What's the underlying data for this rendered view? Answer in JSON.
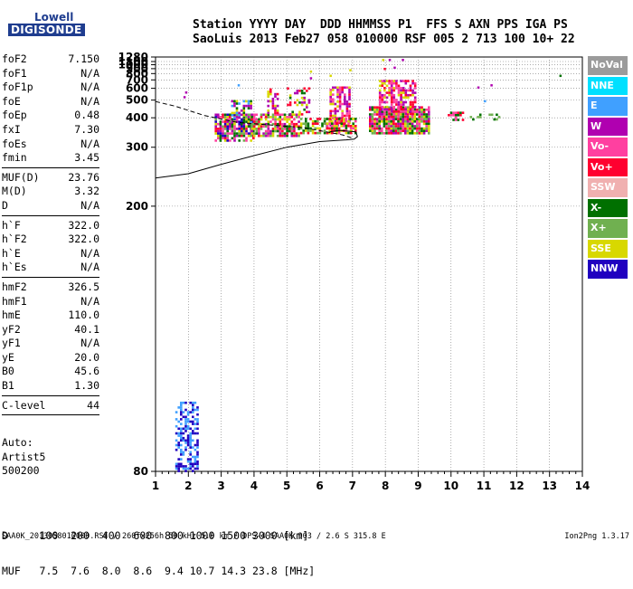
{
  "logo": {
    "line1": "Lowell",
    "line2": "DIGISONDE"
  },
  "header": {
    "line1": "Station YYYY DAY  DDD HHMMSS P1  FFS S AXN PPS IGA PS",
    "line2": "SaoLuis 2013 Feb27 058 010000 RSF 005 2 713 100 10+ 22"
  },
  "params": [
    {
      "label": "foF2",
      "value": "7.150",
      "sep": false
    },
    {
      "label": "foF1",
      "value": "N/A",
      "sep": false
    },
    {
      "label": "foF1p",
      "value": "N/A",
      "sep": false
    },
    {
      "label": "foE",
      "value": "N/A",
      "sep": false
    },
    {
      "label": "foEp",
      "value": "0.48",
      "sep": false
    },
    {
      "label": "fxI",
      "value": "7.30",
      "sep": false
    },
    {
      "label": "foEs",
      "value": "N/A",
      "sep": false
    },
    {
      "label": "fmin",
      "value": "3.45",
      "sep": true
    },
    {
      "label": "MUF(D)",
      "value": "23.76",
      "sep": false
    },
    {
      "label": "M(D)",
      "value": "3.32",
      "sep": false
    },
    {
      "label": "D",
      "value": "N/A",
      "sep": true
    },
    {
      "label": "h`F",
      "value": "322.0",
      "sep": false
    },
    {
      "label": "h`F2",
      "value": "322.0",
      "sep": false
    },
    {
      "label": "h`E",
      "value": "N/A",
      "sep": false
    },
    {
      "label": "h`Es",
      "value": "N/A",
      "sep": true
    },
    {
      "label": "hmF2",
      "value": "326.5",
      "sep": false
    },
    {
      "label": "hmF1",
      "value": "N/A",
      "sep": false
    },
    {
      "label": "hmE",
      "value": "110.0",
      "sep": false
    },
    {
      "label": "yF2",
      "value": "40.1",
      "sep": false
    },
    {
      "label": "yF1",
      "value": "N/A",
      "sep": false
    },
    {
      "label": "yE",
      "value": "20.0",
      "sep": false
    },
    {
      "label": "B0",
      "value": "45.6",
      "sep": false
    },
    {
      "label": "B1",
      "value": "1.30",
      "sep": true
    },
    {
      "label": "C-level",
      "value": "44",
      "sep": true
    }
  ],
  "auto": {
    "line1": "Auto:",
    "line2": "Artist5",
    "line3": "500200"
  },
  "bottom": {
    "d_line": "D     100  200  400  600  800 1000 1500 3000 [km]",
    "muf_line": "MUF   7.5  7.6  8.0  8.6  9.4 10.7 14.3 23.8 [MHz]"
  },
  "footer": {
    "left": "SAA0K_2013058010000.RSF / 260fx256h 50 kHz 5.0 km / DPS-4 SAA0K 903 / 2.6 S 315.8 E",
    "right": "Ion2Png 1.3.17"
  },
  "legend": [
    {
      "label": "NoVal",
      "color": "#9b9b9b"
    },
    {
      "label": "NNE",
      "color": "#00e0ff"
    },
    {
      "label": "E",
      "color": "#40a0ff"
    },
    {
      "label": "W",
      "color": "#b000b0"
    },
    {
      "label": "Vo-",
      "color": "#ff40a0"
    },
    {
      "label": "Vo+",
      "color": "#ff0030"
    },
    {
      "label": "SSW",
      "color": "#f0b0b0"
    },
    {
      "label": "X-",
      "color": "#007000"
    },
    {
      "label": "X+",
      "color": "#70b050"
    },
    {
      "label": "SSE",
      "color": "#d8d800"
    },
    {
      "label": "NNW",
      "color": "#2000c0"
    }
  ],
  "chart_data": {
    "type": "scatter",
    "title": "",
    "xlabel": "",
    "ylabel": "",
    "xlim": [
      1,
      14
    ],
    "ylim": [
      80,
      1280
    ],
    "x_ticks": [
      1,
      2,
      3,
      4,
      5,
      6,
      7,
      8,
      9,
      10,
      11,
      12,
      13,
      14
    ],
    "y_ticks": [
      80,
      200,
      300,
      400,
      500,
      600,
      700,
      800,
      900,
      1000,
      1100,
      1280
    ],
    "y_scale": "reciprocal",
    "grid": true,
    "legend_placement": "right",
    "echo_clusters": [
      {
        "x": [
          2.8,
          4.0
        ],
        "y": [
          320,
          420
        ],
        "density": 0.8,
        "colors": [
          "#007000",
          "#ff0030",
          "#b000b0",
          "#ff40a0",
          "#70b050",
          "#d8d800",
          "#2000c0"
        ]
      },
      {
        "x": [
          3.3,
          3.9
        ],
        "y": [
          380,
          500
        ],
        "density": 0.4,
        "colors": [
          "#d8d800",
          "#b000b0",
          "#40a0ff",
          "#007000"
        ]
      },
      {
        "x": [
          3.9,
          5.4
        ],
        "y": [
          330,
          420
        ],
        "density": 0.75,
        "colors": [
          "#007000",
          "#ff0030",
          "#b000b0",
          "#ff40a0",
          "#d8d800",
          "#70b050"
        ]
      },
      {
        "x": [
          4.4,
          4.7
        ],
        "y": [
          420,
          600
        ],
        "density": 0.45,
        "colors": [
          "#d8d800",
          "#b000b0",
          "#ff0030"
        ]
      },
      {
        "x": [
          5.0,
          5.7
        ],
        "y": [
          420,
          610
        ],
        "density": 0.4,
        "colors": [
          "#d8d800",
          "#b000b0",
          "#ff0030",
          "#007000"
        ]
      },
      {
        "x": [
          5.4,
          6.2
        ],
        "y": [
          340,
          400
        ],
        "density": 0.6,
        "colors": [
          "#007000",
          "#d8d800",
          "#ff0030",
          "#70b050"
        ]
      },
      {
        "x": [
          6.3,
          6.9
        ],
        "y": [
          370,
          620
        ],
        "density": 0.7,
        "colors": [
          "#d8d800",
          "#b000b0",
          "#ff0030",
          "#ff40a0"
        ]
      },
      {
        "x": [
          6.2,
          7.1
        ],
        "y": [
          340,
          400
        ],
        "density": 0.75,
        "colors": [
          "#ff0030",
          "#ff40a0",
          "#007000",
          "#d8d800"
        ]
      },
      {
        "x": [
          7.5,
          9.3
        ],
        "y": [
          340,
          460
        ],
        "density": 0.9,
        "colors": [
          "#ff0030",
          "#ff40a0",
          "#b000b0",
          "#007000",
          "#d8d800",
          "#70b050"
        ]
      },
      {
        "x": [
          7.8,
          8.9
        ],
        "y": [
          420,
          700
        ],
        "density": 0.7,
        "colors": [
          "#d8d800",
          "#b000b0",
          "#ff0030",
          "#ff40a0"
        ]
      },
      {
        "x": [
          9.9,
          10.4
        ],
        "y": [
          390,
          430
        ],
        "density": 0.5,
        "colors": [
          "#ff0030",
          "#ff40a0",
          "#007000"
        ]
      },
      {
        "x": [
          10.5,
          11.5
        ],
        "y": [
          390,
          420
        ],
        "density": 0.3,
        "colors": [
          "#70b050",
          "#007000"
        ]
      },
      {
        "x": [
          1.6,
          2.3
        ],
        "y": [
          80,
          95
        ],
        "density": 0.5,
        "colors": [
          "#2000c0",
          "#40a0ff"
        ]
      }
    ],
    "isolated_points": [
      {
        "x": 7.9,
        "y": 1200,
        "color": "#d8d800"
      },
      {
        "x": 8.1,
        "y": 1200,
        "color": "#b000b0"
      },
      {
        "x": 8.5,
        "y": 1200,
        "color": "#b000b0"
      },
      {
        "x": 8.25,
        "y": 950,
        "color": "#b000b0"
      },
      {
        "x": 7.95,
        "y": 920,
        "color": "#ff0030"
      },
      {
        "x": 6.9,
        "y": 890,
        "color": "#d8d800"
      },
      {
        "x": 5.7,
        "y": 860,
        "color": "#d8d800"
      },
      {
        "x": 6.3,
        "y": 780,
        "color": "#d8d800"
      },
      {
        "x": 5.7,
        "y": 740,
        "color": "#b000b0"
      },
      {
        "x": 13.3,
        "y": 780,
        "color": "#007000"
      },
      {
        "x": 3.5,
        "y": 645,
        "color": "#40a0ff"
      },
      {
        "x": 11.2,
        "y": 645,
        "color": "#b000b0"
      },
      {
        "x": 10.8,
        "y": 620,
        "color": "#b000b0"
      },
      {
        "x": 1.9,
        "y": 570,
        "color": "#b000b0"
      },
      {
        "x": 1.85,
        "y": 530,
        "color": "#b000b0"
      },
      {
        "x": 11.0,
        "y": 500,
        "color": "#40a0ff"
      }
    ],
    "trace_dashed": {
      "x": [
        1.0,
        1.6,
        2.5,
        3.5,
        4.5,
        5.5,
        6.2,
        6.7,
        7.0
      ],
      "y": [
        490,
        460,
        410,
        380,
        370,
        360,
        345,
        335,
        325
      ]
    },
    "trace_solid": {
      "x": [
        1.0,
        2.0,
        3.0,
        4.0,
        5.0,
        6.0,
        6.8,
        7.05,
        7.15,
        7.1,
        6.6,
        6.3
      ],
      "y": [
        238,
        245,
        262,
        280,
        300,
        315,
        320,
        322,
        330,
        345,
        350,
        345
      ]
    }
  }
}
